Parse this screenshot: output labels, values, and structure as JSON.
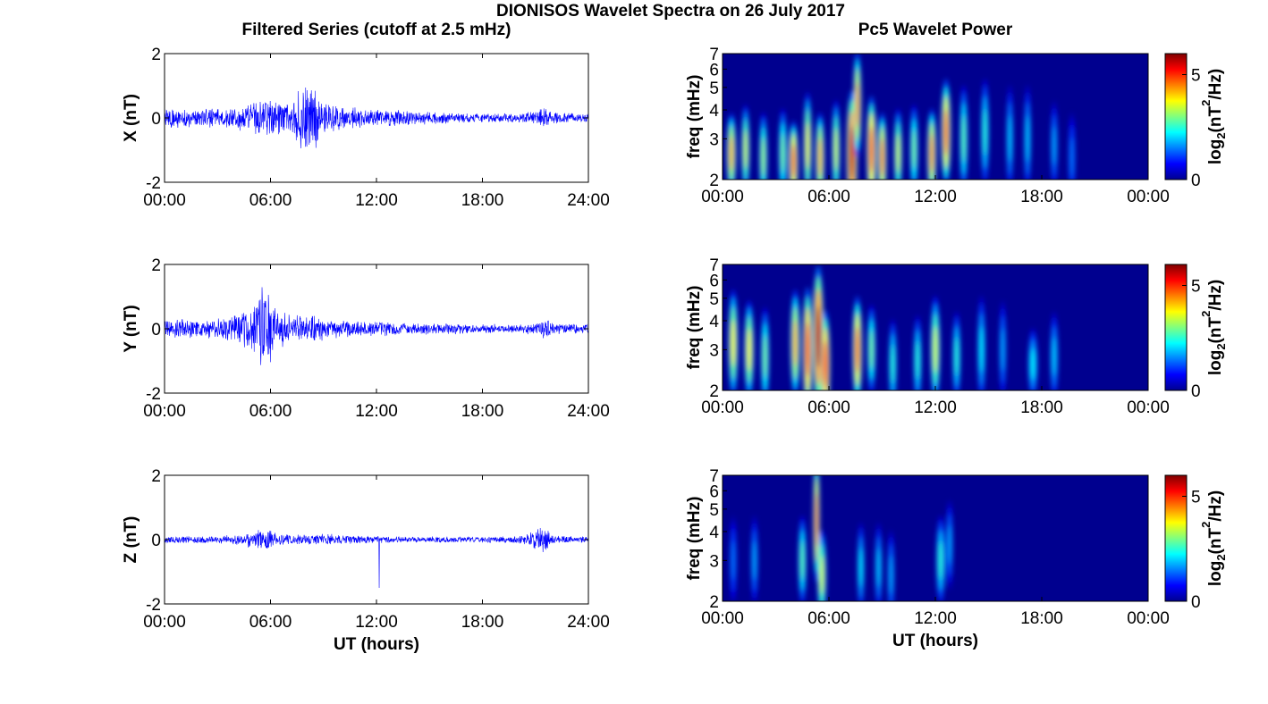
{
  "figure": {
    "title": "DIONISOS Wavelet Spectra on 26 July 2017",
    "left_title": "Filtered Series (cutoff at 2.5 mHz)",
    "right_title": "Pc5 Wavelet Power",
    "xlabel": "UT (hours)",
    "spectrum_ylabel": "freq (mHz)",
    "colorbar_label": "log2(nT2/Hz)"
  },
  "colors": {
    "series_line": "#0000ff",
    "spectrum_background": "#00008f",
    "axes": "#000000"
  },
  "chart_data": [
    {
      "type": "line",
      "name": "X",
      "ylabel": "X (nT)",
      "xlim": [
        0,
        24
      ],
      "ylim": [
        -2,
        2
      ],
      "xticks": [
        0,
        6,
        12,
        18,
        24
      ],
      "xtick_labels": [
        "00:00",
        "06:00",
        "12:00",
        "18:00",
        "24:00"
      ],
      "yticks": [
        -2,
        0,
        2
      ],
      "ytick_labels": [
        "-2",
        "0",
        "2"
      ],
      "amplitude_envelope": {
        "t": [
          0,
          2,
          4,
          5,
          6,
          7,
          7.5,
          8,
          8.5,
          9,
          10,
          12,
          14,
          16,
          18,
          20,
          21,
          21.5,
          22,
          24
        ],
        "amp": [
          0.35,
          0.3,
          0.35,
          0.55,
          0.7,
          0.6,
          0.9,
          1.2,
          1.1,
          0.6,
          0.4,
          0.3,
          0.25,
          0.2,
          0.15,
          0.15,
          0.25,
          0.4,
          0.2,
          0.15
        ]
      }
    },
    {
      "type": "line",
      "name": "Y",
      "ylabel": "Y (nT)",
      "xlim": [
        0,
        24
      ],
      "ylim": [
        -2,
        2
      ],
      "xticks": [
        0,
        6,
        12,
        18,
        24
      ],
      "xtick_labels": [
        "00:00",
        "06:00",
        "12:00",
        "18:00",
        "24:00"
      ],
      "yticks": [
        -2,
        0,
        2
      ],
      "ytick_labels": [
        "-2",
        "0",
        "2"
      ],
      "amplitude_envelope": {
        "t": [
          0,
          2,
          3,
          4,
          5,
          5.5,
          6,
          7,
          8,
          9,
          10,
          12,
          14,
          16,
          18,
          20,
          21,
          21.5,
          22,
          24
        ],
        "amp": [
          0.3,
          0.3,
          0.35,
          0.5,
          0.8,
          1.4,
          1.1,
          0.5,
          0.45,
          0.4,
          0.3,
          0.25,
          0.2,
          0.18,
          0.15,
          0.15,
          0.2,
          0.35,
          0.18,
          0.15
        ]
      }
    },
    {
      "type": "line",
      "name": "Z",
      "ylabel": "Z (nT)",
      "xlim": [
        0,
        24
      ],
      "ylim": [
        -2,
        2
      ],
      "xticks": [
        0,
        6,
        12,
        18,
        24
      ],
      "xtick_labels": [
        "00:00",
        "06:00",
        "12:00",
        "18:00",
        "24:00"
      ],
      "yticks": [
        -2,
        0,
        2
      ],
      "ytick_labels": [
        "-2",
        "0",
        "2"
      ],
      "amplitude_envelope": {
        "t": [
          0,
          2,
          4,
          5,
          5.7,
          6.5,
          8,
          9,
          10,
          12,
          14,
          16,
          18,
          20,
          21,
          21.5,
          22,
          24
        ],
        "amp": [
          0.12,
          0.12,
          0.15,
          0.3,
          0.4,
          0.2,
          0.18,
          0.2,
          0.15,
          0.12,
          0.1,
          0.1,
          0.1,
          0.12,
          0.3,
          0.45,
          0.15,
          0.1
        ]
      },
      "spike": {
        "t": 12.15,
        "value": -1.5
      }
    },
    {
      "type": "heatmap",
      "name": "X wavelet power",
      "ylabel": "freq (mHz)",
      "xlim": [
        0,
        24
      ],
      "ylim": [
        2,
        7
      ],
      "yscale": "log",
      "xticks": [
        0,
        6,
        12,
        18,
        24
      ],
      "xtick_labels": [
        "00:00",
        "06:00",
        "12:00",
        "18:00",
        "00:00"
      ],
      "yticks": [
        2,
        3,
        4,
        5,
        6,
        7
      ],
      "colorbar": {
        "min": 0,
        "max": 6,
        "ticks": [
          0,
          5
        ],
        "label": "log2(nT2/Hz)"
      },
      "events": [
        {
          "t": 0.5,
          "f": 2.6,
          "p": 4.2,
          "w": 0.3,
          "h": 0.45
        },
        {
          "t": 1.3,
          "f": 2.7,
          "p": 3.5,
          "w": 0.25,
          "h": 0.5
        },
        {
          "t": 2.3,
          "f": 2.5,
          "p": 3.2,
          "w": 0.25,
          "h": 0.5
        },
        {
          "t": 3.4,
          "f": 2.6,
          "p": 3.0,
          "w": 0.25,
          "h": 0.5
        },
        {
          "t": 4.0,
          "f": 2.4,
          "p": 4.8,
          "w": 0.3,
          "h": 0.45
        },
        {
          "t": 4.8,
          "f": 2.8,
          "p": 3.8,
          "w": 0.25,
          "h": 0.6
        },
        {
          "t": 5.5,
          "f": 2.5,
          "p": 4.2,
          "w": 0.28,
          "h": 0.5
        },
        {
          "t": 6.4,
          "f": 2.7,
          "p": 3.5,
          "w": 0.25,
          "h": 0.55
        },
        {
          "t": 7.3,
          "f": 2.6,
          "p": 5.6,
          "w": 0.35,
          "h": 0.7
        },
        {
          "t": 7.6,
          "f": 4.2,
          "p": 4.5,
          "w": 0.25,
          "h": 0.6
        },
        {
          "t": 8.4,
          "f": 2.7,
          "p": 5.0,
          "w": 0.3,
          "h": 0.6
        },
        {
          "t": 9.0,
          "f": 2.5,
          "p": 4.6,
          "w": 0.28,
          "h": 0.5
        },
        {
          "t": 9.9,
          "f": 2.6,
          "p": 3.5,
          "w": 0.25,
          "h": 0.5
        },
        {
          "t": 10.8,
          "f": 2.7,
          "p": 3.0,
          "w": 0.25,
          "h": 0.5
        },
        {
          "t": 11.8,
          "f": 2.6,
          "p": 4.5,
          "w": 0.28,
          "h": 0.5
        },
        {
          "t": 12.6,
          "f": 3.2,
          "p": 4.8,
          "w": 0.3,
          "h": 0.6
        },
        {
          "t": 13.6,
          "f": 3.0,
          "p": 2.8,
          "w": 0.25,
          "h": 0.6
        },
        {
          "t": 14.8,
          "f": 3.2,
          "p": 2.5,
          "w": 0.25,
          "h": 0.6
        },
        {
          "t": 16.2,
          "f": 3.0,
          "p": 2.0,
          "w": 0.22,
          "h": 0.6
        },
        {
          "t": 17.2,
          "f": 3.0,
          "p": 2.0,
          "w": 0.22,
          "h": 0.6
        },
        {
          "t": 18.7,
          "f": 2.8,
          "p": 1.8,
          "w": 0.22,
          "h": 0.5
        },
        {
          "t": 19.7,
          "f": 2.5,
          "p": 1.5,
          "w": 0.22,
          "h": 0.5
        }
      ]
    },
    {
      "type": "heatmap",
      "name": "Y wavelet power",
      "ylabel": "freq (mHz)",
      "xlim": [
        0,
        24
      ],
      "ylim": [
        2,
        7
      ],
      "yscale": "log",
      "xticks": [
        0,
        6,
        12,
        18,
        24
      ],
      "xtick_labels": [
        "00:00",
        "06:00",
        "12:00",
        "18:00",
        "00:00"
      ],
      "yticks": [
        2,
        3,
        4,
        5,
        6,
        7
      ],
      "colorbar": {
        "min": 0,
        "max": 6,
        "ticks": [
          0,
          5
        ],
        "label": "log2(nT2/Hz)"
      },
      "events": [
        {
          "t": 0.6,
          "f": 3.2,
          "p": 3.8,
          "w": 0.3,
          "h": 0.6
        },
        {
          "t": 1.5,
          "f": 3.0,
          "p": 3.8,
          "w": 0.3,
          "h": 0.55
        },
        {
          "t": 2.4,
          "f": 2.8,
          "p": 3.0,
          "w": 0.25,
          "h": 0.55
        },
        {
          "t": 4.1,
          "f": 3.2,
          "p": 4.2,
          "w": 0.3,
          "h": 0.6
        },
        {
          "t": 4.8,
          "f": 3.0,
          "p": 5.2,
          "w": 0.3,
          "h": 0.7
        },
        {
          "t": 5.4,
          "f": 3.4,
          "p": 5.7,
          "w": 0.35,
          "h": 0.8
        },
        {
          "t": 5.8,
          "f": 2.6,
          "p": 5.2,
          "w": 0.3,
          "h": 0.6
        },
        {
          "t": 7.6,
          "f": 3.0,
          "p": 4.8,
          "w": 0.3,
          "h": 0.6
        },
        {
          "t": 8.4,
          "f": 3.0,
          "p": 3.0,
          "w": 0.25,
          "h": 0.5
        },
        {
          "t": 9.6,
          "f": 2.6,
          "p": 2.5,
          "w": 0.25,
          "h": 0.5
        },
        {
          "t": 11.0,
          "f": 2.7,
          "p": 2.5,
          "w": 0.25,
          "h": 0.5
        },
        {
          "t": 12.0,
          "f": 3.0,
          "p": 3.5,
          "w": 0.3,
          "h": 0.6
        },
        {
          "t": 13.2,
          "f": 2.8,
          "p": 2.5,
          "w": 0.25,
          "h": 0.5
        },
        {
          "t": 14.6,
          "f": 3.0,
          "p": 2.2,
          "w": 0.25,
          "h": 0.6
        },
        {
          "t": 15.8,
          "f": 3.0,
          "p": 1.8,
          "w": 0.22,
          "h": 0.55
        },
        {
          "t": 17.5,
          "f": 2.6,
          "p": 2.2,
          "w": 0.3,
          "h": 0.4
        },
        {
          "t": 18.7,
          "f": 2.8,
          "p": 2.0,
          "w": 0.25,
          "h": 0.5
        }
      ]
    },
    {
      "type": "heatmap",
      "name": "Z wavelet power",
      "ylabel": "freq (mHz)",
      "xlim": [
        0,
        24
      ],
      "ylim": [
        2,
        7
      ],
      "yscale": "log",
      "xticks": [
        0,
        6,
        12,
        18,
        24
      ],
      "xtick_labels": [
        "00:00",
        "06:00",
        "12:00",
        "18:00",
        "00:00"
      ],
      "yticks": [
        2,
        3,
        4,
        5,
        6,
        7
      ],
      "colorbar": {
        "min": 0,
        "max": 6,
        "ticks": [
          0,
          5
        ],
        "label": "log2(nT2/Hz)"
      },
      "events": [
        {
          "t": 0.6,
          "f": 3.0,
          "p": 1.5,
          "w": 0.22,
          "h": 0.5
        },
        {
          "t": 1.8,
          "f": 3.0,
          "p": 1.8,
          "w": 0.22,
          "h": 0.5
        },
        {
          "t": 4.5,
          "f": 3.0,
          "p": 2.8,
          "w": 0.25,
          "h": 0.5
        },
        {
          "t": 5.3,
          "f": 4.5,
          "p": 4.8,
          "w": 0.2,
          "h": 0.7
        },
        {
          "t": 5.6,
          "f": 2.6,
          "p": 3.5,
          "w": 0.28,
          "h": 0.5
        },
        {
          "t": 7.8,
          "f": 2.8,
          "p": 2.2,
          "w": 0.22,
          "h": 0.5
        },
        {
          "t": 8.8,
          "f": 2.8,
          "p": 2.0,
          "w": 0.22,
          "h": 0.5
        },
        {
          "t": 9.5,
          "f": 2.6,
          "p": 1.8,
          "w": 0.22,
          "h": 0.5
        },
        {
          "t": 12.3,
          "f": 3.0,
          "p": 2.5,
          "w": 0.28,
          "h": 0.5
        },
        {
          "t": 12.8,
          "f": 3.5,
          "p": 1.8,
          "w": 0.22,
          "h": 0.5
        }
      ]
    }
  ]
}
